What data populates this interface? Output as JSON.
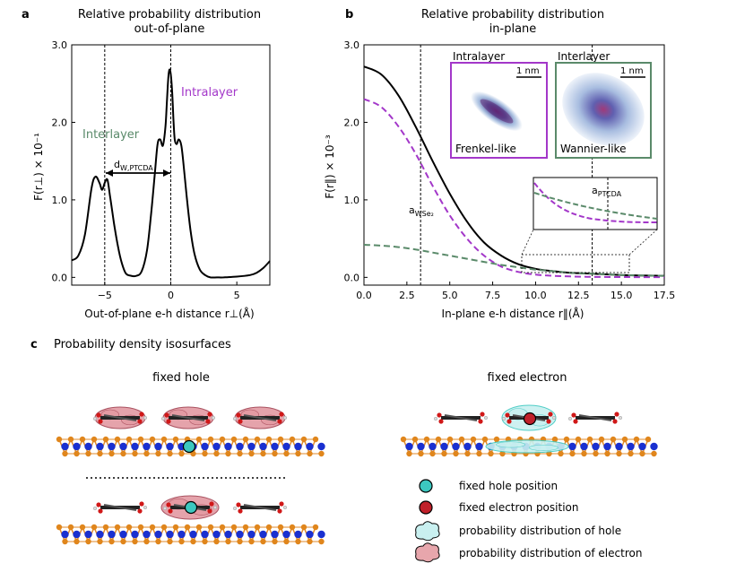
{
  "panel_a": {
    "letter": "a",
    "title_line1": "Relative probability distribution",
    "title_line2": "out-of-plane",
    "ylabel": "F(r⊥) × 10⁻¹",
    "xlabel": "Out-of-plane e-h distance r⊥(Å)",
    "label_intralayer": "Intralayer",
    "label_interlayer": "Interlayer",
    "annotation_d": "d",
    "annotation_d_sub": "W,PTCDA",
    "colors": {
      "intralayer": "#a337c9",
      "interlayer": "#5a8a6a"
    }
  },
  "panel_b": {
    "letter": "b",
    "title_line1": "Relative probability distribution",
    "title_line2": "in-plane",
    "ylabel": "F(r‖) × 10⁻³",
    "xlabel": "In-plane e-h distance r‖(Å)",
    "a_wse2": "a",
    "a_wse2_sub": "WSe₂",
    "inset_intralayer_title": "Intralayer",
    "inset_interlayer_title": "Interlayer",
    "scale_bar": "1 nm",
    "frenkel": "Frenkel-like",
    "wannier": "Wannier-like",
    "a_ptcda": "a",
    "a_ptcda_sub": "PTCDA",
    "colors": {
      "total": "#000000",
      "intralayer": "#a337c9",
      "interlayer": "#5a8a6a"
    }
  },
  "panel_c": {
    "letter": "c",
    "title": "Probability density isosurfaces",
    "fixed_hole": "fixed hole",
    "fixed_electron": "fixed electron",
    "legend": [
      {
        "label": "fixed hole position",
        "color": "#3cc8c0"
      },
      {
        "label": "fixed electron position",
        "color": "#c0202a"
      },
      {
        "label": "probability distribution of hole",
        "color": "#c9f0f0"
      },
      {
        "label": "probability distribution of electron",
        "color": "#e7a6ac"
      }
    ]
  },
  "chart_data": [
    {
      "type": "line",
      "ylabel": "F(r⊥) × 10⁻¹",
      "xlabel": "Out-of-plane e-h distance r⊥(Å)",
      "xlim": [
        -7.5,
        7.5
      ],
      "ylim": [
        -0.1,
        3.0
      ],
      "xticks": [
        -5,
        0,
        5
      ],
      "yticks": [
        0.0,
        1.0,
        2.0,
        3.0
      ],
      "xtick_labels": [
        "−5",
        "0",
        "5"
      ],
      "ytick_labels": [
        "0.0",
        "1.0",
        "2.0",
        "3.0"
      ],
      "vlines": [
        -5.0,
        0.0
      ],
      "series": [
        {
          "x": [
            -7.5,
            -7.0,
            -6.5,
            -6.0,
            -5.7,
            -5.4,
            -5.2,
            -5.0,
            -4.8,
            -4.6,
            -4.3,
            -4.0,
            -3.7,
            -3.4,
            -3.0,
            -2.6,
            -2.2,
            -1.8,
            -1.5,
            -1.2,
            -1.0,
            -0.8,
            -0.6,
            -0.4,
            -0.3,
            -0.2,
            -0.1,
            0.0,
            0.1,
            0.2,
            0.3,
            0.45,
            0.6,
            0.8,
            1.0,
            1.2,
            1.5,
            1.8,
            2.2,
            2.6,
            3.0,
            3.5,
            4.0,
            5.0,
            6.0,
            6.5,
            7.0,
            7.5
          ],
          "y": [
            0.22,
            0.28,
            0.55,
            1.15,
            1.3,
            1.22,
            1.13,
            1.22,
            1.26,
            1.05,
            0.7,
            0.4,
            0.18,
            0.05,
            0.02,
            0.02,
            0.08,
            0.35,
            0.8,
            1.35,
            1.72,
            1.78,
            1.7,
            1.95,
            2.25,
            2.55,
            2.68,
            2.62,
            2.4,
            2.05,
            1.78,
            1.72,
            1.78,
            1.7,
            1.4,
            1.05,
            0.6,
            0.3,
            0.1,
            0.03,
            0.0,
            0.0,
            0.0,
            0.01,
            0.03,
            0.06,
            0.12,
            0.21
          ]
        }
      ]
    },
    {
      "type": "line",
      "ylabel": "F(r‖) × 10⁻³",
      "xlabel": "In-plane e-h distance r‖(Å)",
      "xlim": [
        0,
        17.5
      ],
      "ylim": [
        -0.1,
        3.0
      ],
      "xticks": [
        0,
        2.5,
        5,
        7.5,
        10,
        12.5,
        15,
        17.5
      ],
      "xtick_labels": [
        "0.0",
        "2.5",
        "5.0",
        "7.5",
        "10.0",
        "12.5",
        "15.0",
        "17.5"
      ],
      "yticks": [
        0.0,
        1.0,
        2.0,
        3.0
      ],
      "ytick_labels": [
        "0.0",
        "1.0",
        "2.0",
        "3.0"
      ],
      "vlines": [
        3.3,
        13.3
      ],
      "series": [
        {
          "name": "total",
          "style": "solid",
          "x": [
            0,
            1,
            2,
            3,
            4,
            5,
            6,
            7,
            8,
            9,
            10,
            11,
            12,
            13,
            14,
            15,
            16,
            17.5
          ],
          "y": [
            2.72,
            2.62,
            2.35,
            1.95,
            1.5,
            1.08,
            0.72,
            0.45,
            0.28,
            0.17,
            0.11,
            0.08,
            0.06,
            0.05,
            0.04,
            0.03,
            0.025,
            0.02
          ]
        },
        {
          "name": "intralayer",
          "style": "dashed",
          "x": [
            0,
            1,
            2,
            3,
            4,
            5,
            6,
            7,
            8,
            9,
            10,
            11,
            12,
            13,
            14,
            15,
            16,
            17.5
          ],
          "y": [
            2.3,
            2.2,
            1.95,
            1.6,
            1.18,
            0.8,
            0.5,
            0.28,
            0.14,
            0.07,
            0.035,
            0.02,
            0.012,
            0.008,
            0.005,
            0.004,
            0.003,
            0.002
          ]
        },
        {
          "name": "interlayer",
          "style": "dashed",
          "x": [
            0,
            1,
            2,
            3,
            4,
            5,
            6,
            7,
            8,
            9,
            10,
            11,
            12,
            13,
            14,
            15,
            16,
            17.5
          ],
          "y": [
            0.42,
            0.41,
            0.39,
            0.36,
            0.32,
            0.28,
            0.24,
            0.2,
            0.16,
            0.13,
            0.1,
            0.08,
            0.06,
            0.05,
            0.04,
            0.03,
            0.025,
            0.02
          ]
        }
      ]
    }
  ]
}
